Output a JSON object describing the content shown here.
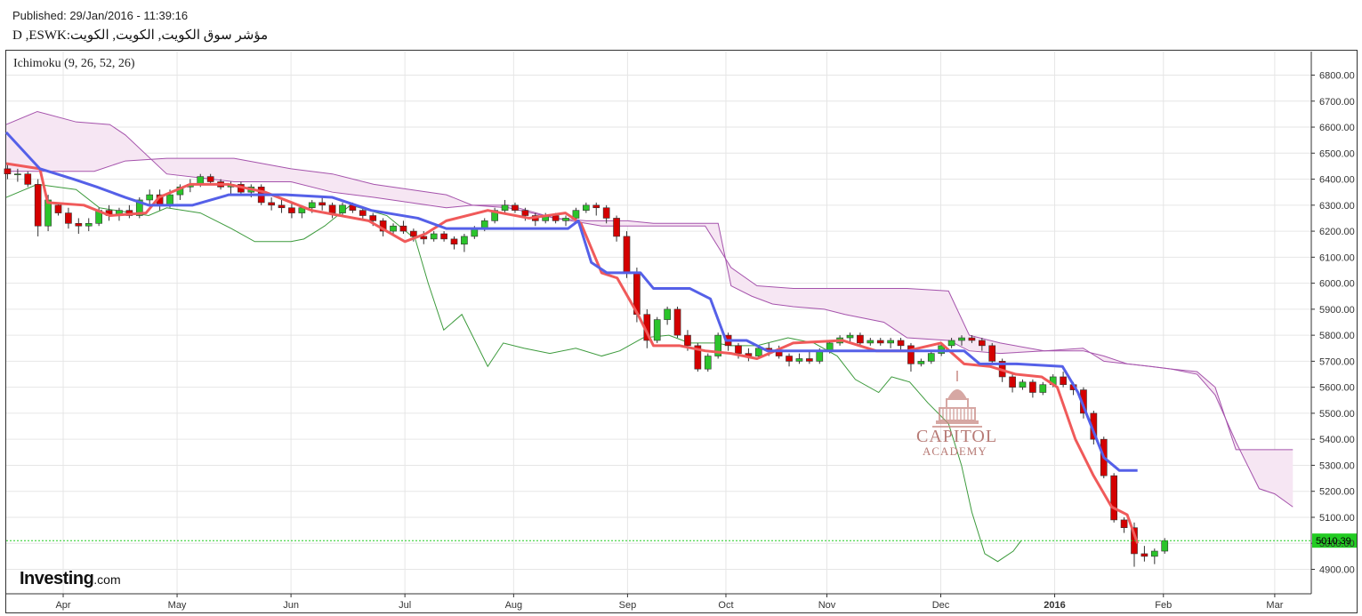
{
  "header": {
    "published": "Published: 29/Jan/2016 - 11:39:16",
    "symbol": "D ,ESWK:مؤشر سوق الكويت, الكويت, الكويت"
  },
  "indicator_label": "Ichimoku (9, 26, 52, 26)",
  "logo": {
    "brand": "Investing",
    "domain": ".com"
  },
  "watermark": {
    "name": "CAPITOL",
    "sub": "ACADEMY"
  },
  "colors": {
    "up": "#2bc42b",
    "down": "#d40000",
    "tenkan": "#f05a5a",
    "kijun": "#5560e8",
    "chikou": "#3c9a3c",
    "cloud_fill": "#f6e6f3",
    "cloud_line": "#a553ac",
    "price_tag": "#22cc22",
    "grid": "#e6e6e6"
  },
  "chart_data": {
    "type": "candlestick",
    "title": "",
    "y_ticks": [
      "6800.00",
      "6700.00",
      "6600.00",
      "6500.00",
      "6400.00",
      "6300.00",
      "6200.00",
      "6100.00",
      "6000.00",
      "5900.00",
      "5800.00",
      "5700.00",
      "5600.00",
      "5500.00",
      "5400.00",
      "5300.00",
      "5200.00",
      "5100.00",
      "5000.00",
      "4900.00"
    ],
    "x_ticks": [
      {
        "label": "Apr",
        "week": 2.2,
        "bold": false
      },
      {
        "label": "May",
        "week": 6.6,
        "bold": false
      },
      {
        "label": "Jun",
        "week": 11.0,
        "bold": false
      },
      {
        "label": "Jul",
        "week": 15.4,
        "bold": false
      },
      {
        "label": "Aug",
        "week": 19.6,
        "bold": false
      },
      {
        "label": "Sep",
        "week": 24.0,
        "bold": false
      },
      {
        "label": "Oct",
        "week": 27.8,
        "bold": false
      },
      {
        "label": "Nov",
        "week": 31.7,
        "bold": false
      },
      {
        "label": "Dec",
        "week": 36.1,
        "bold": false
      },
      {
        "label": "2016",
        "week": 40.5,
        "bold": true
      },
      {
        "label": "Feb",
        "week": 44.7,
        "bold": false
      },
      {
        "label": "Mar",
        "week": 49.0,
        "bold": false
      }
    ],
    "ylim": [
      4850,
      6880
    ],
    "xlim_weeks": [
      0,
      50.2
    ],
    "last_price": "5010.39",
    "last_price_value": 5010.39,
    "candles": [
      [
        6440,
        6460,
        6400,
        6420
      ],
      [
        6420,
        6440,
        6390,
        6420
      ],
      [
        6420,
        6430,
        6370,
        6380
      ],
      [
        6380,
        6400,
        6180,
        6220
      ],
      [
        6220,
        6340,
        6200,
        6320
      ],
      [
        6300,
        6310,
        6260,
        6270
      ],
      [
        6270,
        6290,
        6210,
        6230
      ],
      [
        6230,
        6250,
        6190,
        6220
      ],
      [
        6220,
        6250,
        6200,
        6230
      ],
      [
        6230,
        6290,
        6220,
        6280
      ],
      [
        6280,
        6300,
        6240,
        6260
      ],
      [
        6260,
        6290,
        6240,
        6280
      ],
      [
        6280,
        6300,
        6250,
        6260
      ],
      [
        6260,
        6330,
        6250,
        6320
      ],
      [
        6320,
        6360,
        6300,
        6340
      ],
      [
        6340,
        6360,
        6280,
        6300
      ],
      [
        6300,
        6360,
        6290,
        6340
      ],
      [
        6340,
        6380,
        6320,
        6370
      ],
      [
        6370,
        6400,
        6350,
        6380
      ],
      [
        6380,
        6420,
        6370,
        6410
      ],
      [
        6410,
        6420,
        6380,
        6390
      ],
      [
        6390,
        6400,
        6360,
        6370
      ],
      [
        6370,
        6390,
        6340,
        6380
      ],
      [
        6380,
        6390,
        6340,
        6350
      ],
      [
        6350,
        6380,
        6330,
        6370
      ],
      [
        6370,
        6380,
        6300,
        6310
      ],
      [
        6310,
        6330,
        6280,
        6300
      ],
      [
        6300,
        6320,
        6270,
        6290
      ],
      [
        6290,
        6310,
        6250,
        6270
      ],
      [
        6270,
        6300,
        6250,
        6290
      ],
      [
        6290,
        6320,
        6270,
        6310
      ],
      [
        6310,
        6330,
        6280,
        6300
      ],
      [
        6300,
        6310,
        6250,
        6270
      ],
      [
        6270,
        6310,
        6260,
        6300
      ],
      [
        6300,
        6310,
        6270,
        6280
      ],
      [
        6280,
        6290,
        6240,
        6260
      ],
      [
        6260,
        6270,
        6220,
        6240
      ],
      [
        6240,
        6250,
        6180,
        6200
      ],
      [
        6200,
        6230,
        6190,
        6220
      ],
      [
        6220,
        6240,
        6190,
        6200
      ],
      [
        6200,
        6210,
        6160,
        6180
      ],
      [
        6180,
        6200,
        6150,
        6170
      ],
      [
        6170,
        6200,
        6160,
        6190
      ],
      [
        6190,
        6200,
        6160,
        6170
      ],
      [
        6170,
        6180,
        6130,
        6150
      ],
      [
        6150,
        6190,
        6120,
        6180
      ],
      [
        6180,
        6220,
        6170,
        6210
      ],
      [
        6210,
        6250,
        6200,
        6240
      ],
      [
        6240,
        6290,
        6230,
        6280
      ],
      [
        6280,
        6320,
        6270,
        6300
      ],
      [
        6300,
        6310,
        6270,
        6280
      ],
      [
        6280,
        6290,
        6240,
        6260
      ],
      [
        6260,
        6270,
        6220,
        6240
      ],
      [
        6240,
        6270,
        6230,
        6260
      ],
      [
        6260,
        6270,
        6230,
        6240
      ],
      [
        6240,
        6260,
        6220,
        6250
      ],
      [
        6250,
        6290,
        6240,
        6280
      ],
      [
        6280,
        6310,
        6270,
        6300
      ],
      [
        6300,
        6310,
        6260,
        6290
      ],
      [
        6290,
        6300,
        6230,
        6250
      ],
      [
        6250,
        6260,
        6160,
        6180
      ],
      [
        6180,
        6200,
        6020,
        6040
      ],
      [
        6040,
        6060,
        5850,
        5880
      ],
      [
        5880,
        5900,
        5750,
        5780
      ],
      [
        5780,
        5870,
        5770,
        5860
      ],
      [
        5860,
        5910,
        5840,
        5900
      ],
      [
        5900,
        5910,
        5790,
        5800
      ],
      [
        5800,
        5820,
        5740,
        5760
      ],
      [
        5760,
        5770,
        5660,
        5670
      ],
      [
        5670,
        5730,
        5660,
        5720
      ],
      [
        5720,
        5810,
        5710,
        5800
      ],
      [
        5800,
        5810,
        5740,
        5760
      ],
      [
        5760,
        5770,
        5710,
        5730
      ],
      [
        5730,
        5750,
        5700,
        5720
      ],
      [
        5720,
        5760,
        5710,
        5750
      ],
      [
        5750,
        5770,
        5720,
        5740
      ],
      [
        5740,
        5760,
        5710,
        5720
      ],
      [
        5720,
        5730,
        5680,
        5700
      ],
      [
        5700,
        5730,
        5690,
        5710
      ],
      [
        5710,
        5740,
        5690,
        5700
      ],
      [
        5700,
        5750,
        5690,
        5740
      ],
      [
        5740,
        5780,
        5730,
        5770
      ],
      [
        5770,
        5800,
        5760,
        5790
      ],
      [
        5790,
        5810,
        5770,
        5800
      ],
      [
        5800,
        5810,
        5760,
        5770
      ],
      [
        5770,
        5790,
        5760,
        5780
      ],
      [
        5780,
        5790,
        5760,
        5770
      ],
      [
        5770,
        5790,
        5750,
        5780
      ],
      [
        5780,
        5790,
        5740,
        5760
      ],
      [
        5760,
        5770,
        5660,
        5690
      ],
      [
        5690,
        5710,
        5680,
        5700
      ],
      [
        5700,
        5740,
        5690,
        5730
      ],
      [
        5730,
        5770,
        5720,
        5760
      ],
      [
        5760,
        5790,
        5750,
        5780
      ],
      [
        5780,
        5800,
        5760,
        5790
      ],
      [
        5790,
        5800,
        5770,
        5780
      ],
      [
        5780,
        5790,
        5740,
        5760
      ],
      [
        5760,
        5770,
        5690,
        5700
      ],
      [
        5700,
        5710,
        5620,
        5640
      ],
      [
        5640,
        5650,
        5580,
        5600
      ],
      [
        5600,
        5630,
        5590,
        5620
      ],
      [
        5620,
        5630,
        5560,
        5580
      ],
      [
        5580,
        5620,
        5570,
        5610
      ],
      [
        5610,
        5650,
        5600,
        5640
      ],
      [
        5640,
        5660,
        5600,
        5610
      ],
      [
        5610,
        5620,
        5570,
        5590
      ],
      [
        5590,
        5600,
        5480,
        5500
      ],
      [
        5500,
        5510,
        5380,
        5400
      ],
      [
        5400,
        5410,
        5250,
        5260
      ],
      [
        5260,
        5270,
        5080,
        5090
      ],
      [
        5090,
        5100,
        5040,
        5060
      ],
      [
        5060,
        5080,
        4910,
        4960
      ],
      [
        4960,
        4990,
        4930,
        4950
      ],
      [
        4950,
        4980,
        4920,
        4970
      ],
      [
        4970,
        5020,
        4960,
        5010
      ]
    ],
    "tenkan": [
      [
        0,
        6460
      ],
      [
        1.3,
        6440
      ],
      [
        1.6,
        6310
      ],
      [
        3.0,
        6300
      ],
      [
        4.0,
        6260
      ],
      [
        5.4,
        6270
      ],
      [
        5.9,
        6330
      ],
      [
        7.1,
        6380
      ],
      [
        8.6,
        6380
      ],
      [
        10.0,
        6350
      ],
      [
        11.8,
        6280
      ],
      [
        14.0,
        6240
      ],
      [
        15.4,
        6160
      ],
      [
        16.2,
        6190
      ],
      [
        17.0,
        6240
      ],
      [
        18.6,
        6280
      ],
      [
        20.2,
        6250
      ],
      [
        21.6,
        6270
      ],
      [
        22.2,
        6230
      ],
      [
        23.0,
        6040
      ],
      [
        23.6,
        6020
      ],
      [
        24.4,
        5880
      ],
      [
        25.0,
        5760
      ],
      [
        26.0,
        5760
      ],
      [
        27.0,
        5740
      ],
      [
        28.0,
        5730
      ],
      [
        29.0,
        5710
      ],
      [
        30.4,
        5770
      ],
      [
        32.3,
        5780
      ],
      [
        33.6,
        5740
      ],
      [
        34.8,
        5740
      ],
      [
        36.1,
        5770
      ],
      [
        37.0,
        5690
      ],
      [
        38.0,
        5680
      ],
      [
        39.0,
        5650
      ],
      [
        40.0,
        5640
      ],
      [
        40.6,
        5600
      ],
      [
        41.3,
        5400
      ],
      [
        42.0,
        5260
      ],
      [
        42.7,
        5140
      ],
      [
        43.3,
        5110
      ],
      [
        43.7,
        5000
      ]
    ],
    "kijun": [
      [
        0,
        6580
      ],
      [
        1.3,
        6440
      ],
      [
        2.6,
        6400
      ],
      [
        3.5,
        6370
      ],
      [
        4.6,
        6330
      ],
      [
        5.5,
        6300
      ],
      [
        6.4,
        6300
      ],
      [
        7.2,
        6300
      ],
      [
        8.6,
        6340
      ],
      [
        10.8,
        6340
      ],
      [
        12.6,
        6330
      ],
      [
        14.1,
        6280
      ],
      [
        15.9,
        6250
      ],
      [
        17.0,
        6210
      ],
      [
        20.6,
        6210
      ],
      [
        21.7,
        6210
      ],
      [
        22.1,
        6240
      ],
      [
        22.6,
        6080
      ],
      [
        23.2,
        6040
      ],
      [
        24.5,
        6040
      ],
      [
        25.0,
        5980
      ],
      [
        26.4,
        5980
      ],
      [
        27.2,
        5940
      ],
      [
        27.8,
        5780
      ],
      [
        28.6,
        5780
      ],
      [
        29.4,
        5740
      ],
      [
        32.3,
        5740
      ],
      [
        33.8,
        5740
      ],
      [
        37.0,
        5740
      ],
      [
        37.6,
        5690
      ],
      [
        39.0,
        5690
      ],
      [
        40.8,
        5680
      ],
      [
        41.4,
        5580
      ],
      [
        42.4,
        5330
      ],
      [
        43.0,
        5280
      ],
      [
        43.7,
        5280
      ]
    ],
    "chikou": [
      [
        0,
        6330
      ],
      [
        1.2,
        6380
      ],
      [
        2.7,
        6360
      ],
      [
        3.6,
        6290
      ],
      [
        5.5,
        6260
      ],
      [
        6.2,
        6290
      ],
      [
        7.5,
        6270
      ],
      [
        8.7,
        6210
      ],
      [
        9.6,
        6160
      ],
      [
        11.0,
        6160
      ],
      [
        11.5,
        6170
      ],
      [
        12.3,
        6220
      ],
      [
        13.3,
        6300
      ],
      [
        14.7,
        6260
      ],
      [
        15.8,
        6170
      ],
      [
        16.3,
        6000
      ],
      [
        16.9,
        5820
      ],
      [
        17.6,
        5880
      ],
      [
        18.6,
        5680
      ],
      [
        19.2,
        5770
      ],
      [
        20.0,
        5750
      ],
      [
        21.0,
        5730
      ],
      [
        22.0,
        5750
      ],
      [
        23.0,
        5720
      ],
      [
        23.7,
        5740
      ],
      [
        24.6,
        5790
      ],
      [
        25.6,
        5800
      ],
      [
        26.4,
        5770
      ],
      [
        27.4,
        5770
      ],
      [
        28.0,
        5760
      ],
      [
        29.0,
        5760
      ],
      [
        30.2,
        5790
      ],
      [
        31.2,
        5770
      ],
      [
        32.1,
        5720
      ],
      [
        32.8,
        5630
      ],
      [
        33.7,
        5580
      ],
      [
        34.2,
        5640
      ],
      [
        34.9,
        5620
      ],
      [
        35.6,
        5540
      ],
      [
        36.4,
        5460
      ],
      [
        36.9,
        5300
      ],
      [
        37.3,
        5120
      ],
      [
        37.8,
        4960
      ],
      [
        38.3,
        4930
      ],
      [
        38.9,
        4970
      ],
      [
        39.2,
        5010
      ]
    ],
    "span_a": [
      [
        0,
        6610
      ],
      [
        1.2,
        6660
      ],
      [
        2.7,
        6620
      ],
      [
        4.0,
        6610
      ],
      [
        4.6,
        6570
      ],
      [
        6.2,
        6420
      ],
      [
        8.8,
        6390
      ],
      [
        11.0,
        6390
      ],
      [
        12.6,
        6350
      ],
      [
        14.2,
        6330
      ],
      [
        17.0,
        6290
      ],
      [
        18.0,
        6300
      ],
      [
        19.4,
        6290
      ],
      [
        21.2,
        6250
      ],
      [
        22.4,
        6240
      ],
      [
        23.0,
        6240
      ],
      [
        24.0,
        6240
      ],
      [
        25.0,
        6230
      ],
      [
        26.4,
        6230
      ],
      [
        27.5,
        6230
      ],
      [
        28.0,
        5990
      ],
      [
        28.8,
        5950
      ],
      [
        29.6,
        5920
      ],
      [
        30.4,
        5910
      ],
      [
        31.6,
        5900
      ],
      [
        32.4,
        5880
      ],
      [
        33.9,
        5850
      ],
      [
        34.8,
        5790
      ],
      [
        36.4,
        5780
      ],
      [
        37.2,
        5740
      ],
      [
        38.4,
        5730
      ],
      [
        40.1,
        5740
      ],
      [
        41.6,
        5750
      ],
      [
        42.4,
        5700
      ],
      [
        43.3,
        5690
      ],
      [
        44.2,
        5680
      ],
      [
        45.0,
        5670
      ],
      [
        46.0,
        5650
      ],
      [
        46.7,
        5570
      ],
      [
        47.5,
        5390
      ],
      [
        48.4,
        5210
      ],
      [
        49.0,
        5190
      ],
      [
        49.7,
        5140
      ]
    ],
    "span_b": [
      [
        0,
        6430
      ],
      [
        3.4,
        6430
      ],
      [
        4.6,
        6470
      ],
      [
        6.2,
        6480
      ],
      [
        8.8,
        6480
      ],
      [
        11.0,
        6440
      ],
      [
        12.6,
        6420
      ],
      [
        14.2,
        6380
      ],
      [
        17.0,
        6340
      ],
      [
        18.0,
        6300
      ],
      [
        19.4,
        6300
      ],
      [
        21.2,
        6250
      ],
      [
        22.4,
        6230
      ],
      [
        23.0,
        6220
      ],
      [
        24.0,
        6220
      ],
      [
        25.0,
        6220
      ],
      [
        27.0,
        6220
      ],
      [
        28.0,
        6060
      ],
      [
        29.0,
        5990
      ],
      [
        30.4,
        5980
      ],
      [
        31.6,
        5980
      ],
      [
        32.4,
        5980
      ],
      [
        33.6,
        5980
      ],
      [
        34.8,
        5980
      ],
      [
        36.4,
        5970
      ],
      [
        37.2,
        5800
      ],
      [
        38.4,
        5770
      ],
      [
        40.1,
        5740
      ],
      [
        41.6,
        5740
      ],
      [
        42.4,
        5720
      ],
      [
        43.3,
        5690
      ],
      [
        44.2,
        5680
      ],
      [
        45.0,
        5670
      ],
      [
        46.0,
        5660
      ],
      [
        46.7,
        5600
      ],
      [
        47.5,
        5360
      ],
      [
        48.4,
        5360
      ],
      [
        49.0,
        5360
      ],
      [
        49.7,
        5360
      ]
    ]
  }
}
